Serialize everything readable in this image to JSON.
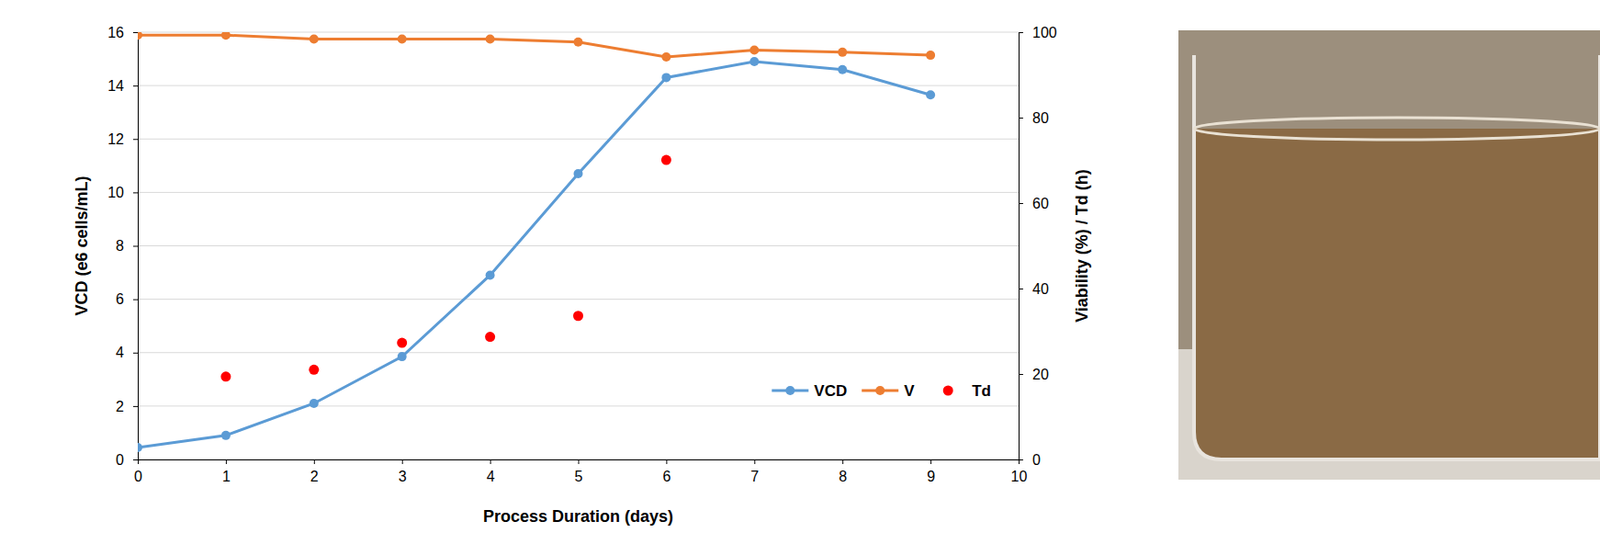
{
  "chart_data": {
    "type": "line",
    "x_label": "Process Duration (days)",
    "y_label": "VCD (e6 cells/mL)",
    "y2_label": "Viability (%) / Td (h)",
    "x": [
      0,
      1,
      2,
      3,
      4,
      5,
      6,
      7,
      8,
      9
    ],
    "xlim": [
      0,
      10
    ],
    "xticks": [
      0,
      1,
      2,
      3,
      4,
      5,
      6,
      7,
      8,
      9,
      10
    ],
    "ylim": [
      0,
      16
    ],
    "yticks": [
      0,
      2,
      4,
      6,
      8,
      10,
      12,
      14,
      16
    ],
    "y2lim": [
      0,
      100
    ],
    "y2ticks": [
      0,
      20,
      40,
      60,
      80,
      100
    ],
    "grid": true,
    "legend": "bottom-right",
    "series": [
      {
        "name": "VCD",
        "color": "#5b9bd5",
        "marker": "circle",
        "type": "line",
        "values": [
          0.45,
          0.9,
          2.1,
          3.85,
          6.9,
          10.7,
          14.3,
          14.9,
          14.6,
          13.65
        ]
      },
      {
        "name": "V",
        "color": "#ed7d31",
        "marker": "circle",
        "type": "line",
        "axis": "y2",
        "values": [
          99.3,
          99.3,
          98.4,
          98.4,
          98.4,
          97.7,
          94.2,
          95.8,
          95.3,
          94.6
        ]
      },
      {
        "name": "Td",
        "color": "#ff0000",
        "marker": "circle",
        "type": "scatter",
        "axis": "y2",
        "values": [
          null,
          19.4,
          21.0,
          27.3,
          28.7,
          33.6,
          70.1,
          null,
          null,
          null
        ]
      }
    ]
  }
}
